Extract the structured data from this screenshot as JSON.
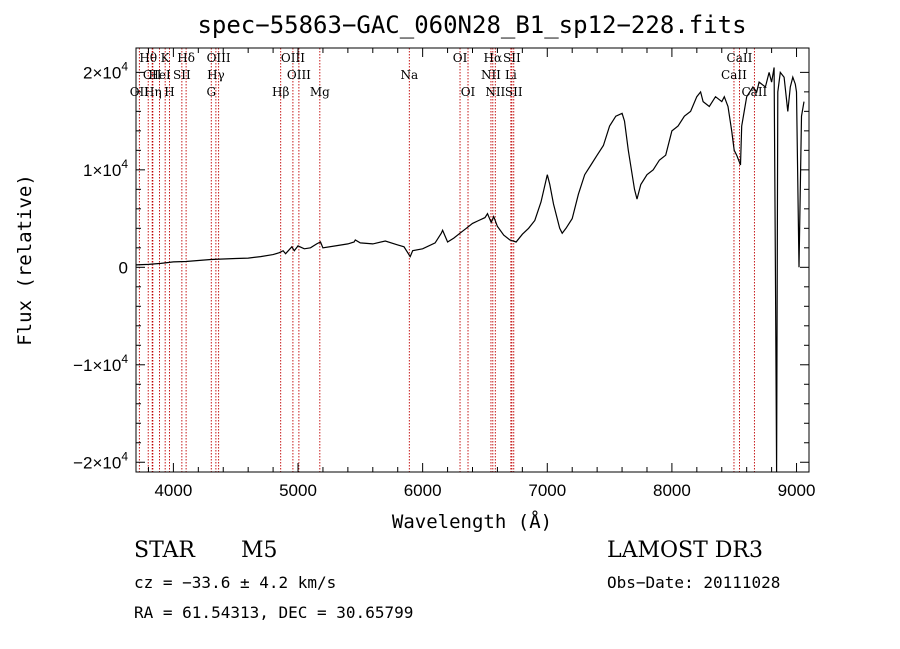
{
  "chart_data": {
    "type": "line",
    "title": "spec−55863−GAC_060N28_B1_sp12−228.fits",
    "xlabel": "Wavelength (Å)",
    "ylabel": "Flux (relative)",
    "xlim": [
      3700,
      9100
    ],
    "ylim": [
      -21000,
      22500
    ],
    "x_ticks": [
      {
        "value": 4000,
        "label": "4000"
      },
      {
        "value": 5000,
        "label": "5000"
      },
      {
        "value": 6000,
        "label": "6000"
      },
      {
        "value": 7000,
        "label": "7000"
      },
      {
        "value": 8000,
        "label": "8000"
      },
      {
        "value": 9000,
        "label": "9000"
      }
    ],
    "y_ticks": [
      {
        "value": 20000,
        "mant": "2×10",
        "exp": "4"
      },
      {
        "value": 10000,
        "mant": "1×10",
        "exp": "4"
      },
      {
        "value": 0,
        "mant": "0",
        "exp": ""
      },
      {
        "value": -10000,
        "mant": "−1×10",
        "exp": "4"
      },
      {
        "value": -20000,
        "mant": "−2×10",
        "exp": "4"
      }
    ],
    "series": [
      {
        "name": "flux",
        "x": [
          3700,
          3800,
          3900,
          4000,
          4100,
          4200,
          4300,
          4400,
          4500,
          4600,
          4700,
          4800,
          4850,
          4880,
          4900,
          4950,
          4970,
          5000,
          5050,
          5100,
          5150,
          5180,
          5200,
          5300,
          5400,
          5450,
          5460,
          5500,
          5600,
          5700,
          5800,
          5850,
          5900,
          5920,
          6000,
          6100,
          6150,
          6160,
          6200,
          6250,
          6300,
          6350,
          6400,
          6450,
          6500,
          6520,
          6550,
          6570,
          6600,
          6650,
          6700,
          6750,
          6800,
          6850,
          6900,
          6950,
          7000,
          7020,
          7050,
          7100,
          7120,
          7150,
          7200,
          7250,
          7300,
          7350,
          7400,
          7450,
          7500,
          7550,
          7600,
          7620,
          7650,
          7700,
          7720,
          7750,
          7800,
          7850,
          7900,
          7950,
          8000,
          8050,
          8100,
          8150,
          8200,
          8230,
          8250,
          8300,
          8350,
          8400,
          8420,
          8450,
          8480,
          8500,
          8520,
          8550,
          8560,
          8580,
          8600,
          8650,
          8680,
          8700,
          8750,
          8780,
          8800,
          8820,
          8830,
          8840,
          8850,
          8870,
          8900,
          8930,
          8950,
          8970,
          8990,
          9000,
          9020,
          9040,
          9060
        ],
        "y": [
          250,
          300,
          400,
          550,
          600,
          700,
          800,
          850,
          900,
          950,
          1100,
          1300,
          1500,
          1700,
          1400,
          2100,
          1700,
          2200,
          1900,
          2000,
          2400,
          2600,
          2000,
          2200,
          2400,
          2600,
          2800,
          2500,
          2400,
          2700,
          2300,
          2100,
          1100,
          1700,
          1900,
          2500,
          3500,
          3800,
          2600,
          3000,
          3500,
          4000,
          4500,
          4800,
          5100,
          5500,
          4600,
          5200,
          4200,
          3300,
          2800,
          2600,
          3400,
          4000,
          4800,
          6700,
          9500,
          8500,
          6500,
          4000,
          3500,
          4000,
          5000,
          7500,
          9500,
          10500,
          11500,
          12500,
          14500,
          15500,
          15800,
          15000,
          12000,
          8000,
          7000,
          8500,
          9500,
          10000,
          11000,
          11500,
          14000,
          14500,
          15500,
          16000,
          17500,
          18000,
          17000,
          16500,
          17500,
          17000,
          17500,
          16500,
          14000,
          12000,
          11500,
          10500,
          14500,
          16000,
          17500,
          18500,
          18000,
          19000,
          18500,
          20000,
          19000,
          20500,
          0,
          -21000,
          18000,
          20000,
          19500,
          16000,
          18500,
          19500,
          18800,
          18000,
          0,
          15500,
          17000
        ]
      }
    ],
    "line_markers": [
      {
        "name": "Hθ",
        "wave": 3798,
        "row": 0
      },
      {
        "name": "CII",
        "wave": 3830,
        "row": 1
      },
      {
        "name": "OII",
        "wave": 3727,
        "row": 2
      },
      {
        "name": "Hη",
        "wave": 3835,
        "row": 2
      },
      {
        "name": "K",
        "wave": 3934,
        "row": 0
      },
      {
        "name": "HeI",
        "wave": 3889,
        "row": 1
      },
      {
        "name": "H",
        "wave": 3969,
        "row": 2
      },
      {
        "name": "Hδ",
        "wave": 4102,
        "row": 0
      },
      {
        "name": "SII",
        "wave": 4068,
        "row": 1
      },
      {
        "name": "OIII",
        "wave": 4363,
        "row": 0
      },
      {
        "name": "Hγ",
        "wave": 4341,
        "row": 1
      },
      {
        "name": "G",
        "wave": 4304,
        "row": 2
      },
      {
        "name": "OIII",
        "wave": 4959,
        "row": 0
      },
      {
        "name": "OIII",
        "wave": 5007,
        "row": 1
      },
      {
        "name": "Hβ",
        "wave": 4861,
        "row": 2
      },
      {
        "name": "Mg",
        "wave": 5175,
        "row": 2
      },
      {
        "name": "Na",
        "wave": 5893,
        "row": 1
      },
      {
        "name": "OI",
        "wave": 6300,
        "row": 0
      },
      {
        "name": "OI",
        "wave": 6364,
        "row": 2
      },
      {
        "name": "Hα",
        "wave": 6563,
        "row": 0
      },
      {
        "name": "NII",
        "wave": 6548,
        "row": 1
      },
      {
        "name": "NII",
        "wave": 6583,
        "row": 2
      },
      {
        "name": "SII",
        "wave": 6716,
        "row": 0
      },
      {
        "name": "Li",
        "wave": 6708,
        "row": 1
      },
      {
        "name": "SII",
        "wave": 6731,
        "row": 2
      },
      {
        "name": "CaII",
        "wave": 8542,
        "row": 0
      },
      {
        "name": "CaII",
        "wave": 8498,
        "row": 1
      },
      {
        "name": "CaII",
        "wave": 8662,
        "row": 2
      }
    ]
  },
  "info": {
    "class_label": "STAR",
    "subclass": "M5",
    "survey": "LAMOST DR3",
    "cz": "cz = −33.6 ± 4.2 km/s",
    "obs_date": "Obs−Date: 20111028",
    "radec": "RA =  61.54313, DEC =  30.65799"
  },
  "colors": {
    "line_marker": "#c00000",
    "spectrum": "#000000",
    "axis": "#000000"
  }
}
